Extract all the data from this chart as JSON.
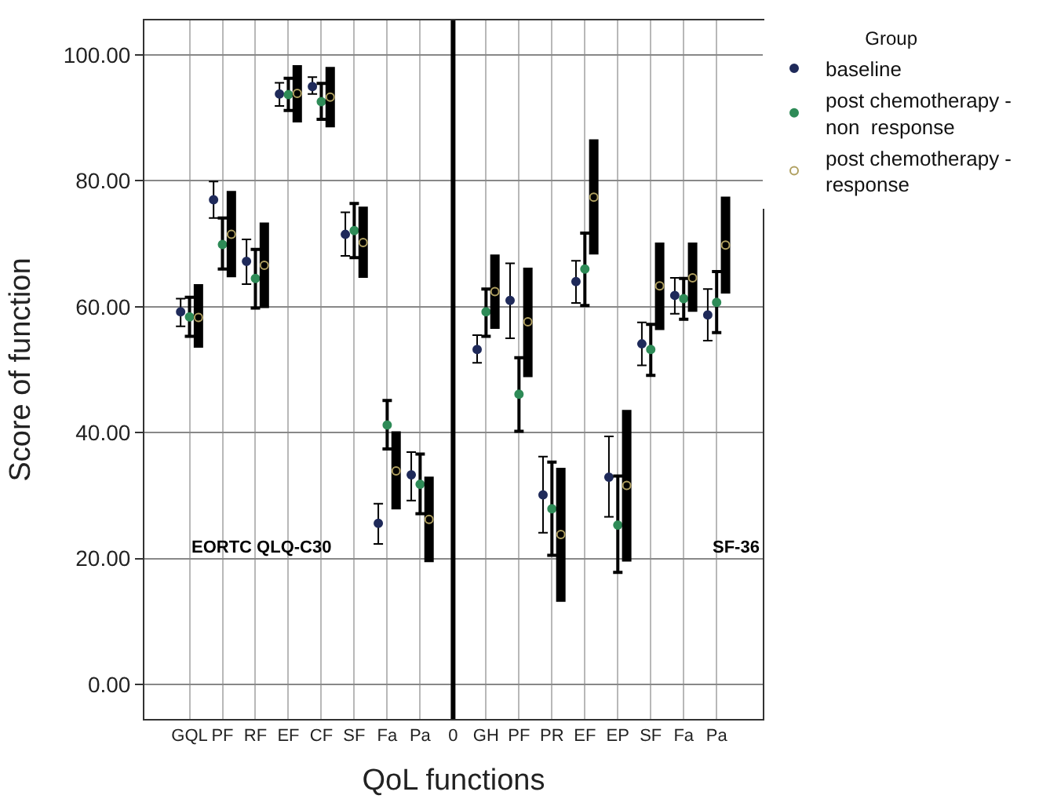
{
  "chart_data": {
    "type": "scatter",
    "xlabel": "QoL functions",
    "ylabel": "Score of function",
    "legend_title": "Group",
    "categories": [
      "GQL",
      "PF",
      "RF",
      "EF",
      "CF",
      "SF",
      "Fa",
      "Pa",
      "0",
      "GH",
      "PF",
      "PR",
      "EF",
      "EP",
      "SF",
      "Fa",
      "Pa"
    ],
    "series": [
      {
        "name": "baseline",
        "color": "#1f2a5a",
        "values": [
          59.2,
          77.0,
          67.2,
          93.8,
          95.0,
          71.5,
          25.6,
          33.3,
          null,
          53.2,
          61.0,
          30.1,
          64.0,
          32.9,
          54.1,
          61.8,
          58.7
        ],
        "errors": [
          [
            56.9,
            61.3
          ],
          [
            74.1,
            79.9
          ],
          [
            63.6,
            70.7
          ],
          [
            91.9,
            95.6
          ],
          [
            93.8,
            96.5
          ],
          [
            68.1,
            75.0
          ],
          [
            22.3,
            28.7
          ],
          [
            29.2,
            36.9
          ],
          null,
          [
            51.1,
            55.5
          ],
          [
            55.0,
            66.9
          ],
          [
            24.1,
            36.2
          ],
          [
            60.6,
            67.3
          ],
          [
            26.6,
            39.4
          ],
          [
            50.7,
            57.5
          ],
          [
            58.9,
            64.6
          ],
          [
            54.6,
            62.8
          ]
        ]
      },
      {
        "name": "post chemotherapy -\nnon  response",
        "color": "#2e8b57",
        "values": [
          58.4,
          69.9,
          64.5,
          93.7,
          92.6,
          72.1,
          41.2,
          31.8,
          null,
          59.2,
          46.1,
          27.9,
          66.0,
          25.3,
          53.2,
          61.3,
          60.7
        ],
        "errors": [
          [
            55.3,
            61.5
          ],
          [
            66.0,
            74.1
          ],
          [
            59.8,
            69.1
          ],
          [
            91.2,
            96.3
          ],
          [
            89.8,
            95.5
          ],
          [
            67.8,
            76.4
          ],
          [
            37.4,
            45.1
          ],
          [
            27.1,
            36.6
          ],
          null,
          [
            55.3,
            62.8
          ],
          [
            40.2,
            51.9
          ],
          [
            20.5,
            35.3
          ],
          [
            60.2,
            71.7
          ],
          [
            17.8,
            33.1
          ],
          [
            49.1,
            57.2
          ],
          [
            58.0,
            64.5
          ],
          [
            55.9,
            65.6
          ]
        ]
      },
      {
        "name": "post chemotherapy -\nresponse",
        "color": "#b0a060",
        "values": [
          58.3,
          71.5,
          66.6,
          93.9,
          93.3,
          70.2,
          33.9,
          26.2,
          null,
          62.4,
          57.6,
          23.8,
          77.4,
          31.6,
          63.3,
          64.6,
          69.8
        ],
        "errors": [
          [
            53.5,
            63.6
          ],
          [
            64.7,
            78.4
          ],
          [
            59.8,
            73.4
          ],
          [
            89.3,
            98.4
          ],
          [
            88.5,
            98.1
          ],
          [
            64.6,
            75.9
          ],
          [
            27.8,
            40.2
          ],
          [
            19.4,
            33.0
          ],
          null,
          [
            56.5,
            68.3
          ],
          [
            48.8,
            66.2
          ],
          [
            13.1,
            34.4
          ],
          [
            68.3,
            86.6
          ],
          [
            19.5,
            43.6
          ],
          [
            56.3,
            70.2
          ],
          [
            59.2,
            70.2
          ],
          [
            62.1,
            77.5
          ]
        ]
      }
    ],
    "ylim": [
      -5.5,
      105.5
    ],
    "yticks": [
      {
        "value": 0,
        "label": "0.00"
      },
      {
        "value": 20,
        "label": "20.00"
      },
      {
        "value": 40,
        "label": "40.00"
      },
      {
        "value": 60,
        "label": "60.00"
      },
      {
        "value": 80,
        "label": "80.00"
      },
      {
        "value": 100,
        "label": "100.00"
      }
    ],
    "ref_lines": [
      {
        "axis": "x",
        "value": "0",
        "color": "#000000"
      }
    ],
    "annotations": [
      "EORTC QLQ-C30",
      "SF-36"
    ],
    "grid": true,
    "legend": "top right",
    "marker": "circle"
  }
}
